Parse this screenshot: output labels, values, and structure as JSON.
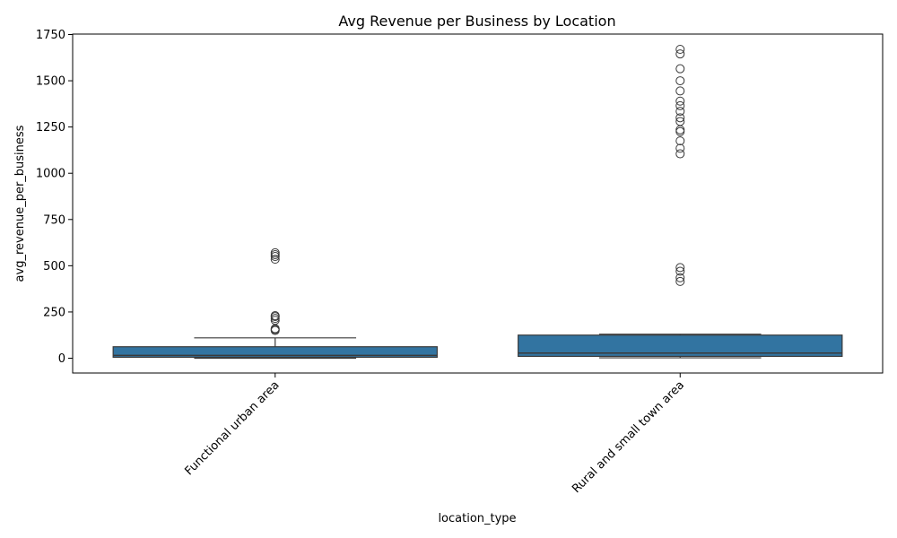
{
  "chart_data": {
    "type": "box",
    "title": "Avg Revenue per Business by Location",
    "xlabel": "location_type",
    "ylabel": "avg_revenue_per_business",
    "categories": [
      "Functional urban area",
      "Rural and small town area"
    ],
    "ylim": [
      -80,
      1750
    ],
    "yticks": [
      0,
      250,
      500,
      750,
      1000,
      1250,
      1500,
      1750
    ],
    "grid": false,
    "box_color": "#3274a1",
    "line_color": "#3a3a3a",
    "boxes": [
      {
        "category": "Functional urban area",
        "whisker_low": 0,
        "q1": 5,
        "median": 15,
        "q3": 62,
        "whisker_high": 110,
        "outliers": [
          570,
          560,
          550,
          535,
          230,
          225,
          215,
          205,
          160,
          155,
          150
        ]
      },
      {
        "category": "Rural and small town area",
        "whisker_low": 2,
        "q1": 10,
        "median": 28,
        "q3": 125,
        "whisker_high": 130,
        "outliers": [
          1670,
          1645,
          1565,
          1500,
          1445,
          1390,
          1365,
          1335,
          1300,
          1280,
          1235,
          1225,
          1175,
          1135,
          1105,
          490,
          470,
          435,
          415
        ]
      }
    ]
  }
}
